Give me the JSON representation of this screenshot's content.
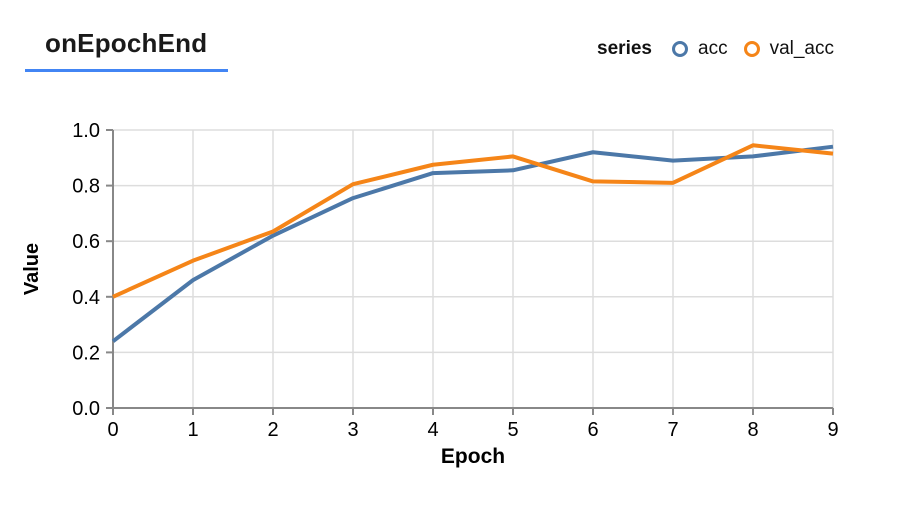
{
  "header": {
    "title": "onEpochEnd",
    "underline_color": "#4285f4"
  },
  "legend": {
    "label": "series",
    "items": [
      {
        "name": "acc",
        "color": "#4c78a8"
      },
      {
        "name": "val_acc",
        "color": "#f58518"
      }
    ]
  },
  "chart_data": {
    "type": "line",
    "title": "onEpochEnd",
    "xlabel": "Epoch",
    "ylabel": "Value",
    "x": [
      0,
      1,
      2,
      3,
      4,
      5,
      6,
      7,
      8,
      9
    ],
    "series": [
      {
        "name": "acc",
        "color": "#4c78a8",
        "values": [
          0.24,
          0.46,
          0.62,
          0.755,
          0.845,
          0.855,
          0.92,
          0.89,
          0.905,
          0.94
        ]
      },
      {
        "name": "val_acc",
        "color": "#f58518",
        "values": [
          0.4,
          0.53,
          0.635,
          0.805,
          0.875,
          0.905,
          0.815,
          0.81,
          0.945,
          0.915
        ]
      }
    ],
    "xlim": [
      0,
      9
    ],
    "ylim": [
      0.0,
      1.0
    ],
    "x_ticks": [
      0,
      1,
      2,
      3,
      4,
      5,
      6,
      7,
      8,
      9
    ],
    "y_ticks": [
      0.0,
      0.2,
      0.4,
      0.6,
      0.8,
      1.0
    ],
    "grid": true,
    "legend_position": "top-right",
    "colors": {
      "grid": "#dddddd",
      "axis": "#888888",
      "tick_text": "#000000"
    }
  }
}
